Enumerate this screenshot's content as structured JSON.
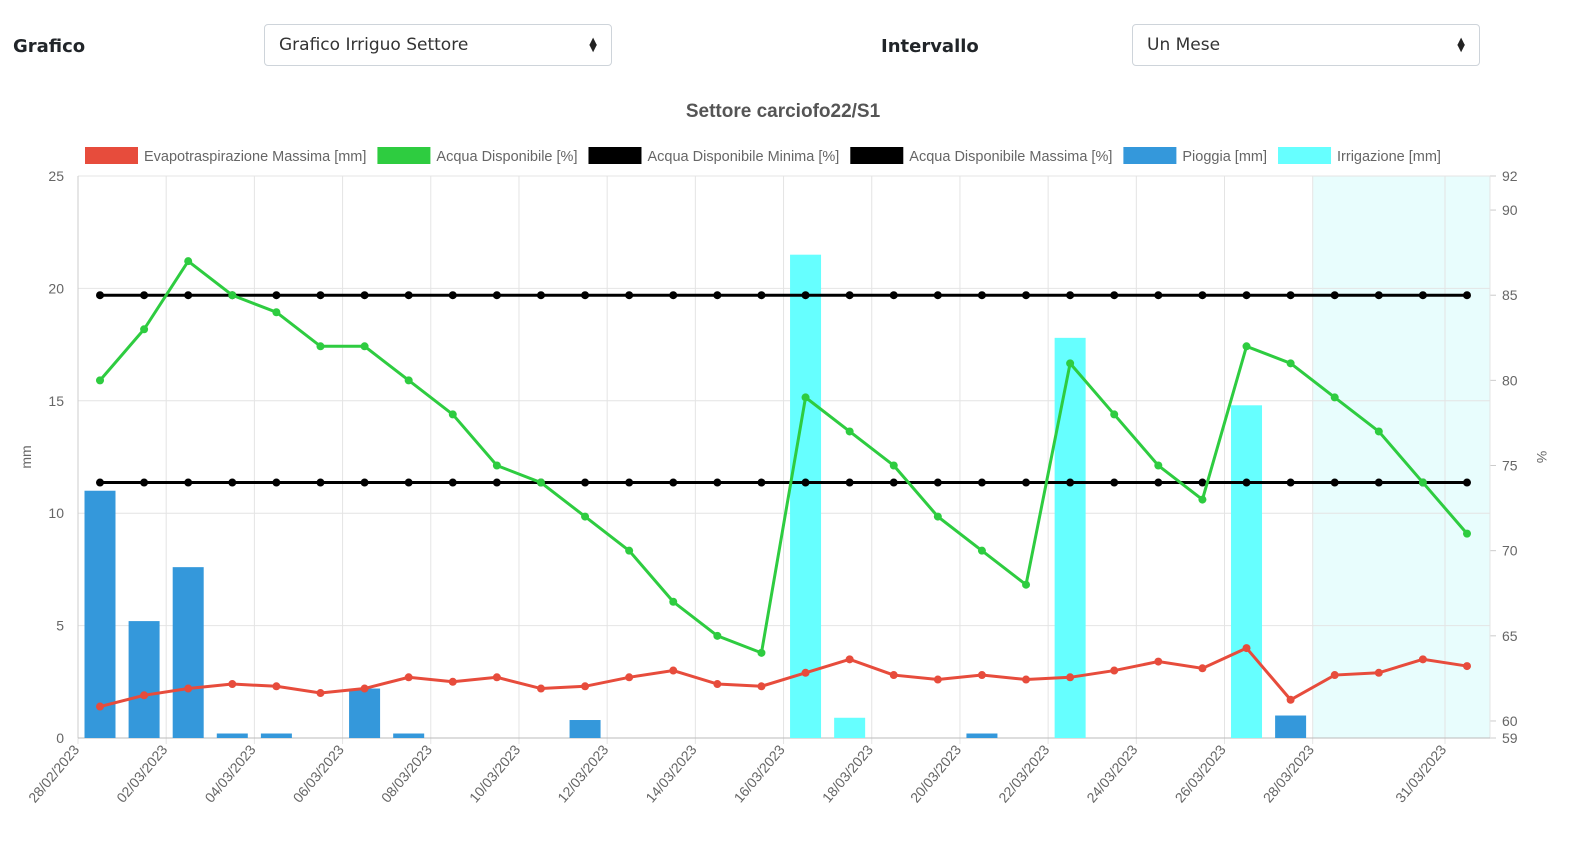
{
  "controls": {
    "chart_label": "Grafico",
    "chart_select_value": "Grafico Irriguo Settore",
    "range_label": "Intervallo",
    "range_select_value": "Un Mese"
  },
  "chart_data": {
    "type": "bar",
    "title": "Settore carciofo22/S1",
    "ylabel_left": "mm",
    "ylabel_right": "%",
    "y_left_range": [
      0,
      25
    ],
    "y_left_ticks": [
      0,
      5,
      10,
      15,
      20,
      25
    ],
    "y_right_range": [
      59,
      92
    ],
    "y_right_ticks": [
      59,
      60,
      65,
      70,
      75,
      80,
      85,
      90,
      92
    ],
    "grid": true,
    "legend_position": "top",
    "x_dates": [
      "28/02/2023",
      "01/03/2023",
      "02/03/2023",
      "03/03/2023",
      "04/03/2023",
      "05/03/2023",
      "06/03/2023",
      "07/03/2023",
      "08/03/2023",
      "09/03/2023",
      "10/03/2023",
      "11/03/2023",
      "12/03/2023",
      "13/03/2023",
      "14/03/2023",
      "15/03/2023",
      "16/03/2023",
      "17/03/2023",
      "18/03/2023",
      "19/03/2023",
      "20/03/2023",
      "21/03/2023",
      "22/03/2023",
      "23/03/2023",
      "24/03/2023",
      "25/03/2023",
      "26/03/2023",
      "27/03/2023",
      "28/03/2023",
      "29/03/2023",
      "30/03/2023",
      "31/03/2023"
    ],
    "x_tick_labels": [
      "28/02/2023",
      "02/03/2023",
      "04/03/2023",
      "06/03/2023",
      "08/03/2023",
      "10/03/2023",
      "12/03/2023",
      "14/03/2023",
      "16/03/2023",
      "18/03/2023",
      "20/03/2023",
      "22/03/2023",
      "24/03/2023",
      "26/03/2023",
      "28/03/2023",
      "31/03/2023"
    ],
    "forecast_from": "27/03/2023",
    "series": [
      {
        "name": "Evapotraspirazione Massima [mm]",
        "kind": "line",
        "axis": "left",
        "color": "#e74c3c",
        "values": [
          1.4,
          1.9,
          2.2,
          2.4,
          2.3,
          2.0,
          2.2,
          2.7,
          2.5,
          2.7,
          2.2,
          2.3,
          2.7,
          3.0,
          2.4,
          2.3,
          2.9,
          3.5,
          2.8,
          2.6,
          2.8,
          2.6,
          2.7,
          3.0,
          3.4,
          3.1,
          4.0,
          1.7,
          2.8,
          2.9,
          3.5,
          3.2
        ]
      },
      {
        "name": "Acqua Disponibile [%]",
        "kind": "line",
        "axis": "right",
        "color": "#2ecc40",
        "values": [
          80,
          83,
          87,
          85,
          84,
          82,
          82,
          80,
          78,
          75,
          74,
          72,
          70,
          67,
          65,
          64,
          79,
          77,
          75,
          72,
          70,
          68,
          81,
          78,
          75,
          73,
          82,
          81,
          79,
          77,
          74,
          71
        ]
      },
      {
        "name": "Acqua Disponibile Minima [%]",
        "kind": "line",
        "axis": "right",
        "color": "#000000",
        "values": [
          74,
          74,
          74,
          74,
          74,
          74,
          74,
          74,
          74,
          74,
          74,
          74,
          74,
          74,
          74,
          74,
          74,
          74,
          74,
          74,
          74,
          74,
          74,
          74,
          74,
          74,
          74,
          74,
          74,
          74,
          74,
          74
        ]
      },
      {
        "name": "Acqua Disponibile Massima [%]",
        "kind": "line",
        "axis": "right",
        "color": "#000000",
        "values": [
          85,
          85,
          85,
          85,
          85,
          85,
          85,
          85,
          85,
          85,
          85,
          85,
          85,
          85,
          85,
          85,
          85,
          85,
          85,
          85,
          85,
          85,
          85,
          85,
          85,
          85,
          85,
          85,
          85,
          85,
          85,
          85
        ]
      },
      {
        "name": "Pioggia [mm]",
        "kind": "bar",
        "axis": "left",
        "color": "#3498db",
        "values": [
          11.0,
          5.2,
          7.6,
          0.2,
          0.2,
          0,
          2.2,
          0.2,
          0,
          0,
          0,
          0.8,
          0,
          0,
          0,
          0,
          0,
          0,
          0,
          0,
          0.2,
          0,
          0,
          0,
          0,
          0,
          0,
          1.0,
          0,
          0,
          0,
          0
        ]
      },
      {
        "name": "Irrigazione [mm]",
        "kind": "bar",
        "axis": "left",
        "color": "#66ffff",
        "values": [
          0,
          0,
          0,
          0,
          0,
          0,
          0,
          0,
          0,
          0,
          0,
          0,
          0,
          0,
          0,
          0,
          21.5,
          0.9,
          0,
          0,
          0,
          0,
          17.8,
          0,
          0,
          0,
          14.8,
          0,
          0,
          0,
          0,
          0
        ]
      }
    ]
  }
}
